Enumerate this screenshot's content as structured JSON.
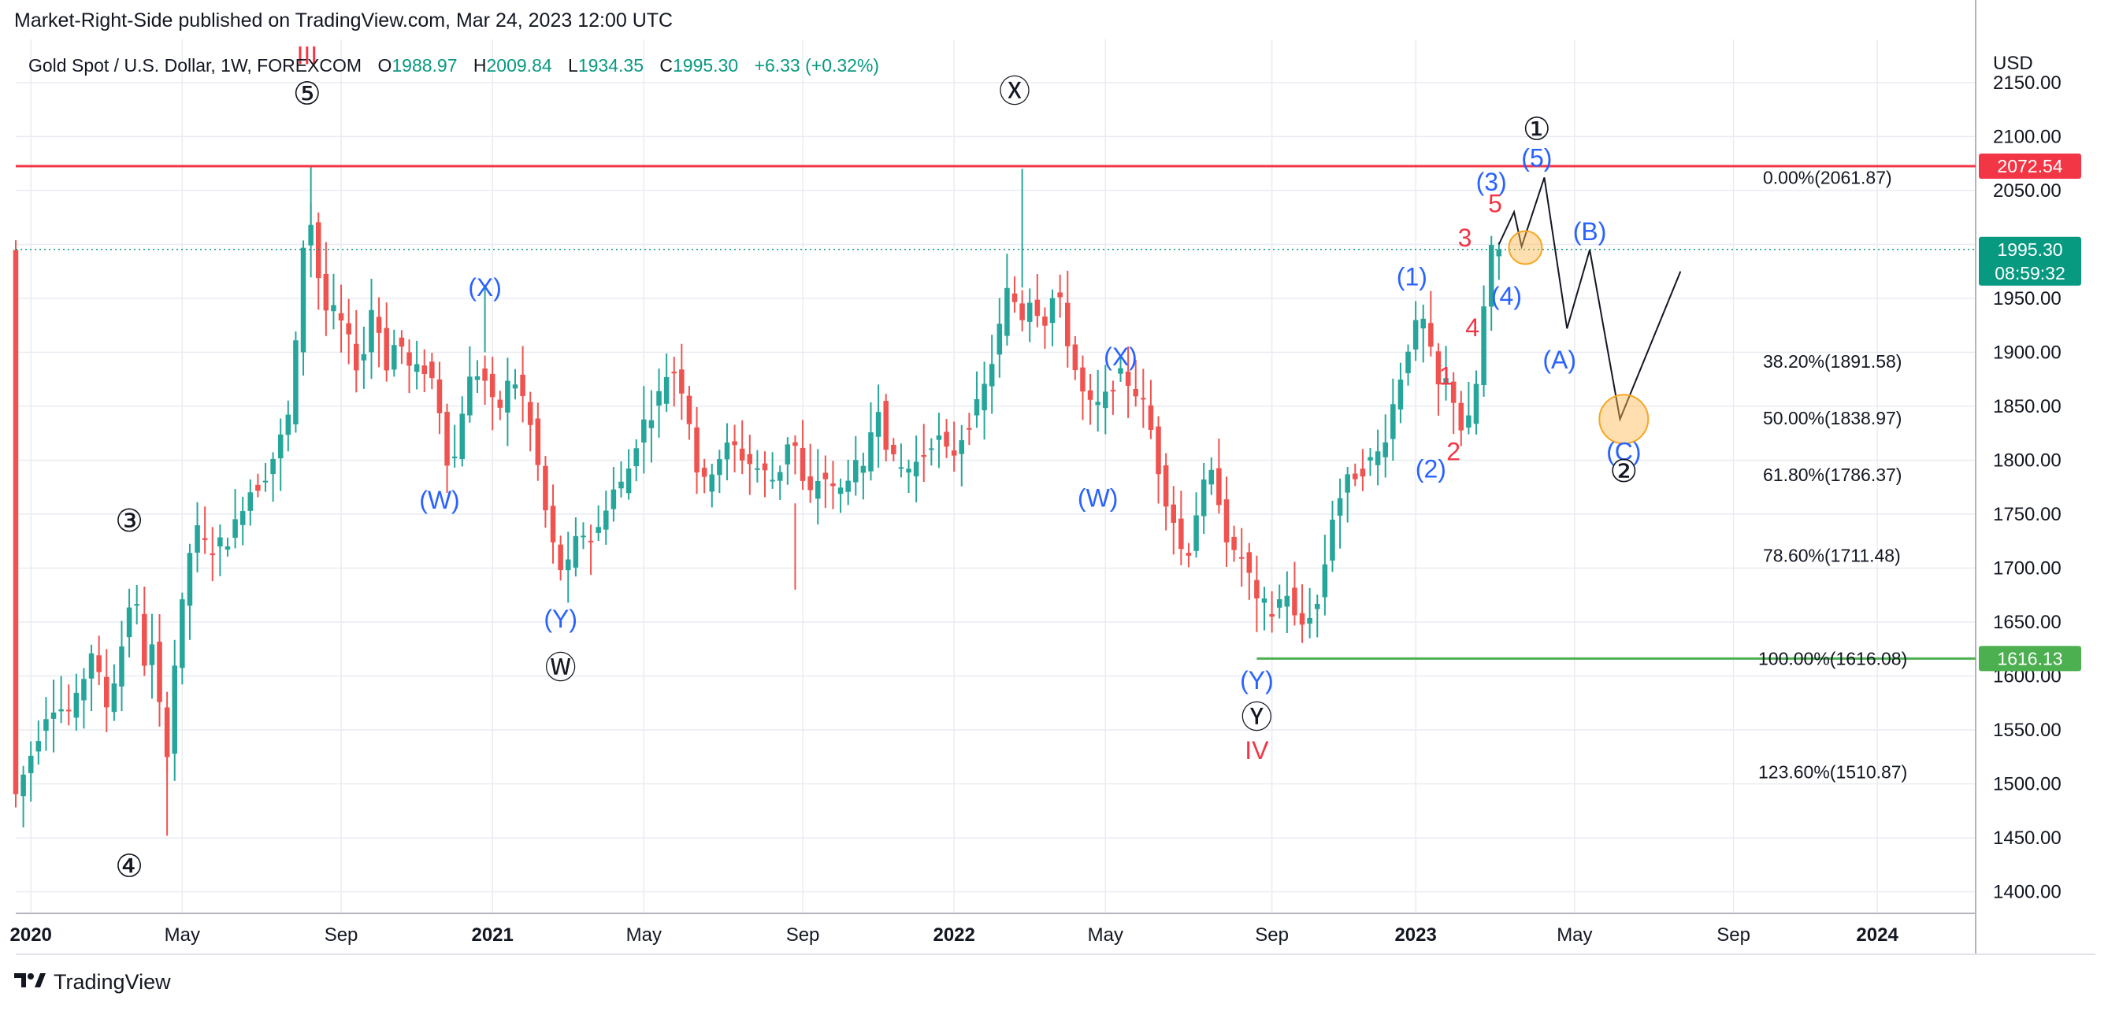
{
  "header": {
    "published_text": "Market-Right-Side published on TradingView.com, Mar 24, 2023 12:00 UTC"
  },
  "legend": {
    "symbol": "Gold Spot / U.S. Dollar, 1W, FOREXCOM",
    "o_label": "O",
    "o_value": "1988.97",
    "h_label": "H",
    "h_value": "2009.84",
    "l_label": "L",
    "l_value": "1934.35",
    "c_label": "C",
    "c_value": "1995.30",
    "change": "+6.33 (+0.32%)"
  },
  "footer": {
    "brand": "TradingView"
  },
  "colors": {
    "up": "#26a69a",
    "down": "#ef5350",
    "blue_label": "#2962ff",
    "red_label": "#f23645",
    "resistance": "#f23645",
    "support": "#4caf50",
    "price_tag": "#089981",
    "grid": "#e9ecf2"
  },
  "chart_data": {
    "type": "candlestick",
    "title": "Gold Spot / U.S. Dollar, 1W, FOREXCOM",
    "currency_label": "USD",
    "ylim": [
      1380,
      2190
    ],
    "y_ticks": [
      1400,
      1450,
      1500,
      1550,
      1600,
      1650,
      1700,
      1750,
      1800,
      1850,
      1900,
      1950,
      2000,
      2050,
      2100,
      2150
    ],
    "y_tick_labels": [
      "1400.00",
      "1450.00",
      "1500.00",
      "1550.00",
      "1600.00",
      "1650.00",
      "1700.00",
      "1750.00",
      "1800.00",
      "1850.00",
      "1900.00",
      "1950.00",
      "2000.00",
      "2050.00",
      "2100.00",
      "2150.00"
    ],
    "x_range_weeks": [
      -2,
      257
    ],
    "x_ticks": [
      {
        "label": "2020",
        "week": 0,
        "bold": true
      },
      {
        "label": "May",
        "week": 20
      },
      {
        "label": "Sep",
        "week": 41
      },
      {
        "label": "2021",
        "week": 61,
        "bold": true
      },
      {
        "label": "May",
        "week": 81
      },
      {
        "label": "Sep",
        "week": 102
      },
      {
        "label": "2022",
        "week": 122,
        "bold": true
      },
      {
        "label": "May",
        "week": 142
      },
      {
        "label": "Sep",
        "week": 164
      },
      {
        "label": "2023",
        "week": 183,
        "bold": true
      },
      {
        "label": "May",
        "week": 204
      },
      {
        "label": "Sep",
        "week": 225
      },
      {
        "label": "2024",
        "week": 244,
        "bold": true
      }
    ],
    "anchors": [
      [
        -2,
        1480
      ],
      [
        3,
        1575
      ],
      [
        6,
        1565
      ],
      [
        9,
        1635
      ],
      [
        10,
        1560
      ],
      [
        12,
        1610
      ],
      [
        14,
        1685
      ],
      [
        16,
        1590
      ],
      [
        17,
        1660
      ],
      [
        18,
        1480
      ],
      [
        19,
        1585
      ],
      [
        21,
        1690
      ],
      [
        22,
        1740
      ],
      [
        24,
        1715
      ],
      [
        27,
        1730
      ],
      [
        29,
        1770
      ],
      [
        31,
        1780
      ],
      [
        33,
        1810
      ],
      [
        35,
        1850
      ],
      [
        36,
        1960
      ],
      [
        37,
        2040
      ],
      [
        38,
        2000
      ],
      [
        39,
        1940
      ],
      [
        41,
        1935
      ],
      [
        43,
        1900
      ],
      [
        44,
        1880
      ],
      [
        46,
        1960
      ],
      [
        47,
        1880
      ],
      [
        49,
        1915
      ],
      [
        51,
        1875
      ],
      [
        52,
        1890
      ],
      [
        54,
        1870
      ],
      [
        56,
        1780
      ],
      [
        58,
        1870
      ],
      [
        60,
        1885
      ],
      [
        62,
        1840
      ],
      [
        64,
        1880
      ],
      [
        66,
        1850
      ],
      [
        68,
        1775
      ],
      [
        69,
        1730
      ],
      [
        71,
        1690
      ],
      [
        73,
        1735
      ],
      [
        75,
        1725
      ],
      [
        77,
        1770
      ],
      [
        79,
        1780
      ],
      [
        81,
        1830
      ],
      [
        83,
        1850
      ],
      [
        85,
        1890
      ],
      [
        87,
        1860
      ],
      [
        89,
        1770
      ],
      [
        91,
        1800
      ],
      [
        93,
        1815
      ],
      [
        95,
        1800
      ],
      [
        97,
        1790
      ],
      [
        99,
        1780
      ],
      [
        101,
        1830
      ],
      [
        103,
        1760
      ],
      [
        105,
        1790
      ],
      [
        107,
        1765
      ],
      [
        109,
        1795
      ],
      [
        111,
        1785
      ],
      [
        112,
        1870
      ],
      [
        114,
        1800
      ],
      [
        116,
        1790
      ],
      [
        118,
        1800
      ],
      [
        120,
        1825
      ],
      [
        122,
        1800
      ],
      [
        124,
        1830
      ],
      [
        126,
        1855
      ],
      [
        128,
        1905
      ],
      [
        129,
        1940
      ],
      [
        130,
        1970
      ],
      [
        131,
        1925
      ],
      [
        133,
        1960
      ],
      [
        134,
        1920
      ],
      [
        136,
        1960
      ],
      [
        138,
        1895
      ],
      [
        140,
        1850
      ],
      [
        142,
        1850
      ],
      [
        144,
        1880
      ],
      [
        146,
        1870
      ],
      [
        148,
        1845
      ],
      [
        150,
        1775
      ],
      [
        152,
        1735
      ],
      [
        153,
        1700
      ],
      [
        155,
        1770
      ],
      [
        156,
        1780
      ],
      [
        157,
        1790
      ],
      [
        158,
        1740
      ],
      [
        160,
        1700
      ],
      [
        161,
        1720
      ],
      [
        162,
        1665
      ],
      [
        164,
        1665
      ],
      [
        165,
        1650
      ],
      [
        166,
        1690
      ],
      [
        168,
        1640
      ],
      [
        169,
        1655
      ],
      [
        171,
        1670
      ],
      [
        172,
        1740
      ],
      [
        174,
        1775
      ],
      [
        175,
        1785
      ],
      [
        177,
        1795
      ],
      [
        179,
        1810
      ],
      [
        181,
        1865
      ],
      [
        183,
        1920
      ],
      [
        185,
        1930
      ],
      [
        186,
        1865
      ],
      [
        188,
        1875
      ],
      [
        189,
        1840
      ],
      [
        190,
        1820
      ],
      [
        191,
        1850
      ],
      [
        192,
        1890
      ],
      [
        193,
        1990
      ],
      [
        194,
        1995
      ]
    ],
    "last_price": 1995.3,
    "current_price_label": "1995.30",
    "countdown_label": "08:59:32",
    "resistance": {
      "price": 2072.54,
      "label": "2072.54"
    },
    "support": {
      "price": 1616.13,
      "label": "1616.13",
      "from_week": 162
    },
    "fib_levels": [
      {
        "text": "0.00%(2061.87)",
        "price": 2061.87
      },
      {
        "text": "38.20%(1891.58)",
        "price": 1891.58
      },
      {
        "text": "50.00%(1838.97)",
        "price": 1838.97
      },
      {
        "text": "61.80%(1786.37)",
        "price": 1786.37
      },
      {
        "text": "78.60%(1711.48)",
        "price": 1711.48
      },
      {
        "text": "100.00%(1616.08)",
        "price": 1616.08
      },
      {
        "text": "123.60%(1510.87)",
        "price": 1510.87
      }
    ],
    "projection_path": [
      [
        194,
        2000
      ],
      [
        196,
        2030
      ],
      [
        197,
        1998
      ],
      [
        200,
        2062
      ],
      [
        203,
        1922
      ],
      [
        206,
        1995
      ],
      [
        210,
        1838
      ],
      [
        218,
        1975
      ]
    ],
    "target_circles": [
      {
        "week": 197.5,
        "price": 1997
      },
      {
        "week": 210.5,
        "price": 1838
      }
    ],
    "wave_labels": [
      {
        "text": "III",
        "week": 36.5,
        "price": 2175,
        "color": "red"
      },
      {
        "text": "⑤",
        "week": 36.5,
        "price": 2138,
        "color": "black"
      },
      {
        "text": "③",
        "week": 13,
        "price": 1742,
        "color": "black"
      },
      {
        "text": "④",
        "week": 13,
        "price": 1422,
        "color": "black"
      },
      {
        "text": "(X)",
        "week": 60,
        "price": 1960,
        "color": "blue"
      },
      {
        "text": "(W)",
        "week": 54,
        "price": 1763,
        "color": "blue"
      },
      {
        "text": "(Y)",
        "week": 70,
        "price": 1653,
        "color": "blue"
      },
      {
        "text": "Ⓦ",
        "week": 70,
        "price": 1606,
        "color": "black"
      },
      {
        "text": "Ⓧ",
        "week": 130,
        "price": 2140,
        "color": "black"
      },
      {
        "text": "(X)",
        "week": 144,
        "price": 1896,
        "color": "blue"
      },
      {
        "text": "(W)",
        "week": 141,
        "price": 1765,
        "color": "blue"
      },
      {
        "text": "(Y)",
        "week": 162,
        "price": 1596,
        "color": "blue"
      },
      {
        "text": "Ⓨ",
        "week": 162,
        "price": 1560,
        "color": "black"
      },
      {
        "text": "IV",
        "week": 162,
        "price": 1531,
        "color": "red"
      },
      {
        "text": "(1)",
        "week": 182.5,
        "price": 1970,
        "color": "blue"
      },
      {
        "text": "(2)",
        "week": 185,
        "price": 1792,
        "color": "blue"
      },
      {
        "text": "1",
        "week": 187,
        "price": 1878,
        "color": "red"
      },
      {
        "text": "2",
        "week": 188,
        "price": 1808,
        "color": "red"
      },
      {
        "text": "3",
        "week": 189.5,
        "price": 2006,
        "color": "red"
      },
      {
        "text": "4",
        "week": 190.5,
        "price": 1923,
        "color": "red"
      },
      {
        "text": "(3)",
        "week": 193,
        "price": 2058,
        "color": "blue"
      },
      {
        "text": "5",
        "week": 193.5,
        "price": 2038,
        "color": "red"
      },
      {
        "text": "(4)",
        "week": 195,
        "price": 1952,
        "color": "blue"
      },
      {
        "text": "①",
        "week": 199,
        "price": 2105,
        "color": "black"
      },
      {
        "text": "(5)",
        "week": 199,
        "price": 2080,
        "color": "blue"
      },
      {
        "text": "(B)",
        "week": 206,
        "price": 2012,
        "color": "blue"
      },
      {
        "text": "(A)",
        "week": 202,
        "price": 1893,
        "color": "blue"
      },
      {
        "text": "(C)",
        "week": 210.5,
        "price": 1808,
        "color": "blue"
      },
      {
        "text": "②",
        "week": 210.5,
        "price": 1788,
        "color": "black"
      }
    ]
  }
}
